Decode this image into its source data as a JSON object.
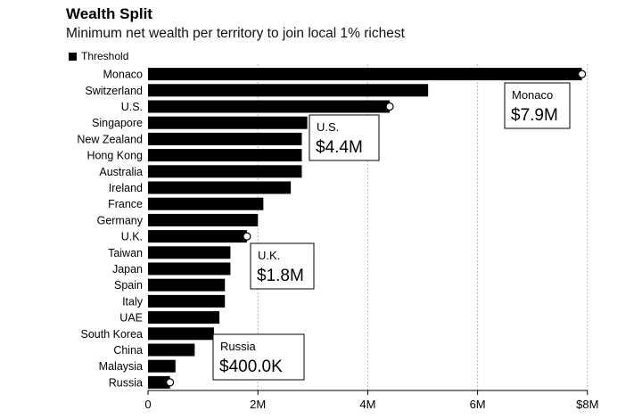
{
  "chart_data": {
    "type": "bar",
    "orientation": "horizontal",
    "title": "Wealth Split",
    "subtitle": "Minimum net wealth per territory to join local 1% richest",
    "legend": [
      {
        "label": "Threshold",
        "color": "#000000"
      }
    ],
    "categories": [
      "Monaco",
      "Switzerland",
      "U.S.",
      "Singapore",
      "New Zealand",
      "Hong Kong",
      "Australia",
      "Ireland",
      "France",
      "Germany",
      "U.K.",
      "Taiwan",
      "Japan",
      "Spain",
      "Italy",
      "UAE",
      "South Korea",
      "China",
      "Malaysia",
      "Russia"
    ],
    "values": [
      7.9,
      5.1,
      4.4,
      2.9,
      2.8,
      2.8,
      2.8,
      2.6,
      2.1,
      2.0,
      1.8,
      1.5,
      1.5,
      1.4,
      1.4,
      1.3,
      1.2,
      0.85,
      0.5,
      0.4
    ],
    "unit": "$M",
    "xlim": [
      0,
      8
    ],
    "xticks": [
      {
        "value": 0,
        "label": "0"
      },
      {
        "value": 2,
        "label": "2M"
      },
      {
        "value": 4,
        "label": "4M"
      },
      {
        "value": 6,
        "label": "6M"
      },
      {
        "value": 8,
        "label": "$8M"
      }
    ],
    "annotations": [
      {
        "category": "Monaco",
        "name": "Monaco",
        "value_label": "$7.9M"
      },
      {
        "category": "U.S.",
        "name": "U.S.",
        "value_label": "$4.4M"
      },
      {
        "category": "U.K.",
        "name": "U.K.",
        "value_label": "$1.8M"
      },
      {
        "category": "Russia",
        "name": "Russia",
        "value_label": "$400.0K"
      }
    ],
    "grid": "vertical dashed at ticks"
  }
}
